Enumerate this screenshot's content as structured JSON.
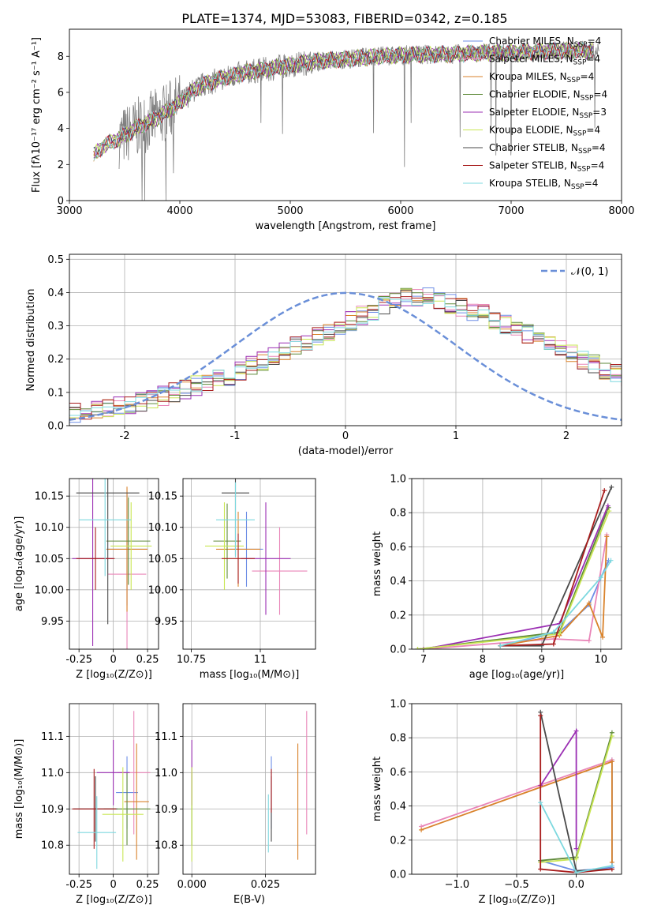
{
  "figure": {
    "title": "PLATE=1374, MJD=53083, FIBERID=0342, z=0.185",
    "series_colors": {
      "Chabrier MILES": "#6d8ee6",
      "Salpeter MILES": "#e985b8",
      "Kroupa MILES": "#d9822b",
      "Chabrier ELODIE": "#5f8a3a",
      "Salpeter ELODIE": "#9b2fb3",
      "Kroupa ELODIE": "#c9e653",
      "Chabrier STELIB": "#4a4a4a",
      "Salpeter STELIB": "#a81c1c",
      "Kroupa STELIB": "#7dd8df"
    },
    "data_color": "#808080"
  },
  "chart_data": [
    {
      "id": "spectrum",
      "type": "line",
      "title": "PLATE=1374, MJD=53083, FIBERID=0342, z=0.185",
      "xlabel": "wavelength [Angstrom, rest frame]",
      "ylabel": "Flux [fλ10⁻¹⁷ erg cm⁻² s⁻¹ A⁻¹]",
      "xlim": [
        3000,
        8000
      ],
      "ylim": [
        0,
        9.5
      ],
      "xticks": [
        3000,
        4000,
        5000,
        6000,
        7000,
        8000
      ],
      "yticks": [
        0,
        2,
        4,
        6,
        8
      ],
      "grid": false,
      "legend_position": "right",
      "legend": [
        {
          "label": "Chabrier MILES, N",
          "sub": "SSP",
          "tail": "=4"
        },
        {
          "label": "Salpeter MILES, N",
          "sub": "SSP",
          "tail": "=4"
        },
        {
          "label": "Kroupa MILES, N",
          "sub": "SSP",
          "tail": "=4"
        },
        {
          "label": "Chabrier ELODIE, N",
          "sub": "SSP",
          "tail": "=4"
        },
        {
          "label": "Salpeter ELODIE, N",
          "sub": "SSP",
          "tail": "=3"
        },
        {
          "label": "Kroupa ELODIE, N",
          "sub": "SSP",
          "tail": "=4"
        },
        {
          "label": "Chabrier STELIB, N",
          "sub": "SSP",
          "tail": "=4"
        },
        {
          "label": "Salpeter STELIB, N",
          "sub": "SSP",
          "tail": "=4"
        },
        {
          "label": "Kroupa STELIB, N",
          "sub": "SSP",
          "tail": "=4"
        }
      ],
      "continuum": {
        "x": [
          3220,
          3300,
          3400,
          3500,
          3600,
          3700,
          3800,
          3900,
          4000,
          4100,
          4200,
          4400,
          4600,
          4800,
          5000,
          5200,
          5400,
          5600,
          5800,
          6000,
          6200,
          6400,
          6600,
          6800,
          7000,
          7200,
          7400,
          7600,
          7750
        ],
        "y": [
          2.5,
          3.0,
          3.3,
          3.6,
          4.0,
          4.3,
          4.6,
          5.0,
          5.4,
          6.0,
          6.4,
          6.8,
          7.1,
          7.3,
          7.5,
          7.7,
          7.8,
          7.9,
          8.0,
          8.05,
          8.1,
          8.1,
          8.15,
          8.2,
          8.2,
          8.25,
          8.3,
          8.3,
          8.3
        ]
      },
      "data_noise_range": [
        3450,
        7800
      ]
    },
    {
      "id": "residuals",
      "type": "histogram",
      "xlabel": "(data-model)/error",
      "ylabel": "Normed distribution",
      "xlim": [
        -2.5,
        2.5
      ],
      "ylim": [
        0,
        0.515
      ],
      "xticks": [
        -2,
        -1,
        0,
        1,
        2
      ],
      "yticks": [
        0.0,
        0.1,
        0.2,
        0.3,
        0.4,
        0.5
      ],
      "grid": true,
      "legend_position": "top-right",
      "legend": [
        {
          "label": "𝒩(0, 1)",
          "style": "dashed"
        }
      ],
      "bin_width": 0.1,
      "reference_mean": 0,
      "reference_sigma": 1,
      "base": [
        0.04,
        0.045,
        0.05,
        0.055,
        0.06,
        0.065,
        0.07,
        0.08,
        0.09,
        0.1,
        0.11,
        0.12,
        0.13,
        0.14,
        0.15,
        0.165,
        0.18,
        0.195,
        0.21,
        0.225,
        0.24,
        0.255,
        0.27,
        0.285,
        0.3,
        0.315,
        0.33,
        0.345,
        0.36,
        0.375,
        0.385,
        0.39,
        0.385,
        0.375,
        0.365,
        0.355,
        0.345,
        0.335,
        0.32,
        0.305,
        0.29,
        0.275,
        0.26,
        0.245,
        0.23,
        0.215,
        0.2,
        0.185,
        0.17,
        0.155,
        0.14,
        0.13,
        0.12,
        0.11,
        0.1,
        0.09,
        0.08,
        0.07,
        0.06,
        0.05
      ]
    },
    {
      "id": "age-vs-Z",
      "type": "errorbar",
      "xlabel": "Z [log₁₀(Z/Z⊙)]",
      "ylabel": "age  [log₁₀(age/yr)]",
      "xlim": [
        -0.32,
        0.33
      ],
      "ylim": [
        9.905,
        10.178
      ],
      "xticks": [
        -0.25,
        0.0,
        0.25
      ],
      "yticks": [
        9.95,
        10.0,
        10.05,
        10.1,
        10.15
      ],
      "grid": true,
      "points": [
        {
          "series": "Chabrier MILES",
          "x": 0.1,
          "xerr": 0.15,
          "y": 10.065,
          "yerr": 0.09
        },
        {
          "series": "Salpeter MILES",
          "x": 0.1,
          "xerr": 0.14,
          "y": 10.025,
          "yerr": 0.12
        },
        {
          "series": "Kroupa MILES",
          "x": 0.1,
          "xerr": 0.15,
          "y": 10.065,
          "yerr": 0.1
        },
        {
          "series": "Chabrier ELODIE",
          "x": 0.11,
          "xerr": 0.16,
          "y": 10.078,
          "yerr": 0.07
        },
        {
          "series": "Salpeter ELODIE",
          "x": -0.15,
          "xerr": 0.15,
          "y": 10.05,
          "yerr": 0.14
        },
        {
          "series": "Kroupa ELODIE",
          "x": 0.13,
          "xerr": 0.15,
          "y": 10.07,
          "yerr": 0.07
        },
        {
          "series": "Chabrier STELIB",
          "x": -0.04,
          "xerr": 0.23,
          "y": 10.155,
          "yerr": 0.21
        },
        {
          "series": "Salpeter STELIB",
          "x": -0.13,
          "xerr": 0.14,
          "y": 10.05,
          "yerr": 0.05
        },
        {
          "series": "Kroupa STELIB",
          "x": -0.06,
          "xerr": 0.19,
          "y": 10.112,
          "yerr": 0.09
        }
      ]
    },
    {
      "id": "age-vs-mass",
      "type": "errorbar",
      "xlabel": "mass [log₁₀(M/M⊙)]",
      "ylabel": "",
      "xlim": [
        10.72,
        11.2
      ],
      "ylim": [
        9.905,
        10.178
      ],
      "xticks": [
        10.75,
        11.0
      ],
      "yticks": [
        9.95,
        10.0,
        10.05,
        10.1,
        10.15
      ],
      "grid": true,
      "points": [
        {
          "series": "Chabrier MILES",
          "x": 10.95,
          "xerr": 0.06,
          "y": 10.065,
          "yerr": 0.06
        },
        {
          "series": "Salpeter MILES",
          "x": 11.07,
          "xerr": 0.1,
          "y": 10.03,
          "yerr": 0.07
        },
        {
          "series": "Kroupa MILES",
          "x": 10.92,
          "xerr": 0.08,
          "y": 10.065,
          "yerr": 0.06
        },
        {
          "series": "Chabrier ELODIE",
          "x": 10.88,
          "xerr": 0.05,
          "y": 10.078,
          "yerr": 0.06
        },
        {
          "series": "Salpeter ELODIE",
          "x": 11.02,
          "xerr": 0.09,
          "y": 10.05,
          "yerr": 0.09
        },
        {
          "series": "Kroupa ELODIE",
          "x": 10.87,
          "xerr": 0.07,
          "y": 10.07,
          "yerr": 0.07
        },
        {
          "series": "Chabrier STELIB",
          "x": 10.91,
          "xerr": 0.05,
          "y": 10.155,
          "yerr": 0.1
        },
        {
          "series": "Salpeter STELIB",
          "x": 10.92,
          "xerr": 0.06,
          "y": 10.05,
          "yerr": 0.04
        },
        {
          "series": "Kroupa STELIB",
          "x": 10.91,
          "xerr": 0.07,
          "y": 10.112,
          "yerr": 0.06
        }
      ]
    },
    {
      "id": "weight-vs-age",
      "type": "line",
      "xlabel": "age  [log₁₀(age/yr)]",
      "ylabel": "mass weight",
      "xlim": [
        6.8,
        10.35
      ],
      "ylim": [
        0,
        1
      ],
      "xticks": [
        7,
        8,
        9,
        10
      ],
      "yticks": [
        0.0,
        0.2,
        0.4,
        0.6,
        0.8,
        1.0
      ],
      "grid": true,
      "series": [
        {
          "name": "Chabrier MILES",
          "x": [
            8.3,
            9.3,
            9.8,
            10.13
          ],
          "y": [
            0.02,
            0.1,
            0.26,
            0.52
          ]
        },
        {
          "name": "Salpeter MILES",
          "x": [
            7.0,
            9.2,
            9.8,
            10.1
          ],
          "y": [
            0.0,
            0.06,
            0.05,
            0.67
          ]
        },
        {
          "name": "Kroupa MILES",
          "x": [
            8.3,
            9.3,
            9.8,
            10.03,
            10.1
          ],
          "y": [
            0.02,
            0.08,
            0.27,
            0.07,
            0.66
          ]
        },
        {
          "name": "Chabrier ELODIE",
          "x": [
            6.9,
            9.3,
            10.13
          ],
          "y": [
            0.0,
            0.1,
            0.83
          ]
        },
        {
          "name": "Salpeter ELODIE",
          "x": [
            7.0,
            9.3,
            10.12
          ],
          "y": [
            0.0,
            0.15,
            0.84
          ]
        },
        {
          "name": "Kroupa ELODIE",
          "x": [
            6.9,
            9.3,
            10.14
          ],
          "y": [
            0.0,
            0.09,
            0.81
          ]
        },
        {
          "name": "Chabrier STELIB",
          "x": [
            8.3,
            9.0,
            10.18
          ],
          "y": [
            0.02,
            0.02,
            0.95
          ]
        },
        {
          "name": "Salpeter STELIB",
          "x": [
            8.3,
            9.2,
            10.06
          ],
          "y": [
            0.02,
            0.03,
            0.93
          ]
        },
        {
          "name": "Kroupa STELIB",
          "x": [
            8.3,
            9.2,
            10.0,
            10.17
          ],
          "y": [
            0.02,
            0.1,
            0.42,
            0.52
          ]
        }
      ]
    },
    {
      "id": "mass-vs-Z",
      "type": "errorbar",
      "xlabel": "Z [log₁₀(Z/Z⊙)]",
      "ylabel": "mass [log₁₀(M/M⊙)]",
      "xlim": [
        -0.32,
        0.33
      ],
      "ylim": [
        10.72,
        11.19
      ],
      "xticks": [
        -0.25,
        0.0,
        0.25
      ],
      "yticks": [
        10.8,
        10.9,
        11.0,
        11.1
      ],
      "grid": true,
      "points": [
        {
          "series": "Chabrier MILES",
          "x": 0.1,
          "xerr": 0.08,
          "y": 10.945,
          "yerr": 0.1
        },
        {
          "series": "Salpeter MILES",
          "x": 0.15,
          "xerr": 0.12,
          "y": 11.0,
          "yerr": 0.17
        },
        {
          "series": "Kroupa MILES",
          "x": 0.17,
          "xerr": 0.09,
          "y": 10.92,
          "yerr": 0.16
        },
        {
          "series": "Chabrier ELODIE",
          "x": 0.1,
          "xerr": 0.17,
          "y": 10.9,
          "yerr": 0.1
        },
        {
          "series": "Salpeter ELODIE",
          "x": 0.0,
          "xerr": 0.12,
          "y": 11.0,
          "yerr": 0.09
        },
        {
          "series": "Kroupa ELODIE",
          "x": 0.07,
          "xerr": 0.15,
          "y": 10.885,
          "yerr": 0.13
        },
        {
          "series": "Chabrier STELIB",
          "x": -0.13,
          "xerr": 0.16,
          "y": 10.9,
          "yerr": 0.09
        },
        {
          "series": "Salpeter STELIB",
          "x": -0.14,
          "xerr": 0.16,
          "y": 10.9,
          "yerr": 0.11
        },
        {
          "series": "Kroupa STELIB",
          "x": -0.12,
          "xerr": 0.14,
          "y": 10.835,
          "yerr": 0.1
        }
      ]
    },
    {
      "id": "mass-vs-EBV",
      "type": "errorbar",
      "xlabel": "E(B-V)",
      "ylabel": "",
      "xlim": [
        -0.003,
        0.042
      ],
      "ylim": [
        10.72,
        11.19
      ],
      "xticks": [
        0.0,
        0.025
      ],
      "xticklabels": [
        "0.000",
        "0.025"
      ],
      "yticks": [
        10.8,
        10.9,
        11.0,
        11.1
      ],
      "grid": true,
      "points": [
        {
          "series": "Chabrier MILES",
          "x": 0.027,
          "xerr": 0,
          "y": 10.945,
          "yerr": 0.1
        },
        {
          "series": "Salpeter MILES",
          "x": 0.039,
          "xerr": 0,
          "y": 11.0,
          "yerr": 0.17
        },
        {
          "series": "Kroupa MILES",
          "x": 0.036,
          "xerr": 0,
          "y": 10.92,
          "yerr": 0.16
        },
        {
          "series": "Chabrier ELODIE",
          "x": 0.0,
          "xerr": 0,
          "y": 10.9,
          "yerr": 0.1
        },
        {
          "series": "Salpeter ELODIE",
          "x": 0.0,
          "xerr": 0,
          "y": 11.0,
          "yerr": 0.09
        },
        {
          "series": "Kroupa ELODIE",
          "x": 0.0,
          "xerr": 0,
          "y": 10.885,
          "yerr": 0.13
        },
        {
          "series": "Chabrier STELIB",
          "x": 0.027,
          "xerr": 0,
          "y": 10.9,
          "yerr": 0.09
        },
        {
          "series": "Salpeter STELIB",
          "x": 0.027,
          "xerr": 0,
          "y": 10.95,
          "yerr": 0.06
        },
        {
          "series": "Kroupa STELIB",
          "x": 0.026,
          "xerr": 0,
          "y": 10.86,
          "yerr": 0.08
        }
      ]
    },
    {
      "id": "weight-vs-Z",
      "type": "line",
      "xlabel": "Z [log₁₀(Z/Z⊙)]",
      "ylabel": "mass weight",
      "xlim": [
        -1.38,
        0.38
      ],
      "ylim": [
        0,
        1
      ],
      "xticks": [
        -1.0,
        -0.5,
        0.0
      ],
      "xticklabels": [
        "−1.0",
        "−0.5",
        "0.0"
      ],
      "yticks": [
        0.0,
        0.2,
        0.4,
        0.6,
        0.8,
        1.0
      ],
      "grid": true,
      "series": [
        {
          "name": "Chabrier MILES",
          "x": [
            -0.3,
            0.0,
            0.3,
            0.3
          ],
          "y": [
            0.08,
            0.02,
            0.04,
            0.67
          ]
        },
        {
          "name": "Salpeter MILES",
          "x": [
            -1.3,
            0.3
          ],
          "y": [
            0.28,
            0.67
          ]
        },
        {
          "name": "Kroupa MILES",
          "x": [
            -1.3,
            0.3,
            0.3
          ],
          "y": [
            0.26,
            0.66,
            0.07
          ]
        },
        {
          "name": "Chabrier ELODIE",
          "x": [
            -0.3,
            0.0,
            0.3
          ],
          "y": [
            0.08,
            0.1,
            0.83
          ]
        },
        {
          "name": "Salpeter ELODIE",
          "x": [
            -0.3,
            0.0,
            0.0
          ],
          "y": [
            0.52,
            0.84,
            0.15
          ]
        },
        {
          "name": "Kroupa ELODIE",
          "x": [
            -0.3,
            0.0,
            0.3
          ],
          "y": [
            0.07,
            0.09,
            0.81
          ]
        },
        {
          "name": "Chabrier STELIB",
          "x": [
            -0.3,
            0.0,
            0.3
          ],
          "y": [
            0.95,
            0.02,
            0.03
          ]
        },
        {
          "name": "Salpeter STELIB",
          "x": [
            -0.3,
            -0.3,
            0.0,
            0.3
          ],
          "y": [
            0.93,
            0.03,
            0.01,
            0.03
          ]
        },
        {
          "name": "Kroupa STELIB",
          "x": [
            -0.3,
            0.0,
            0.3
          ],
          "y": [
            0.42,
            0.01,
            0.05
          ]
        }
      ]
    }
  ]
}
